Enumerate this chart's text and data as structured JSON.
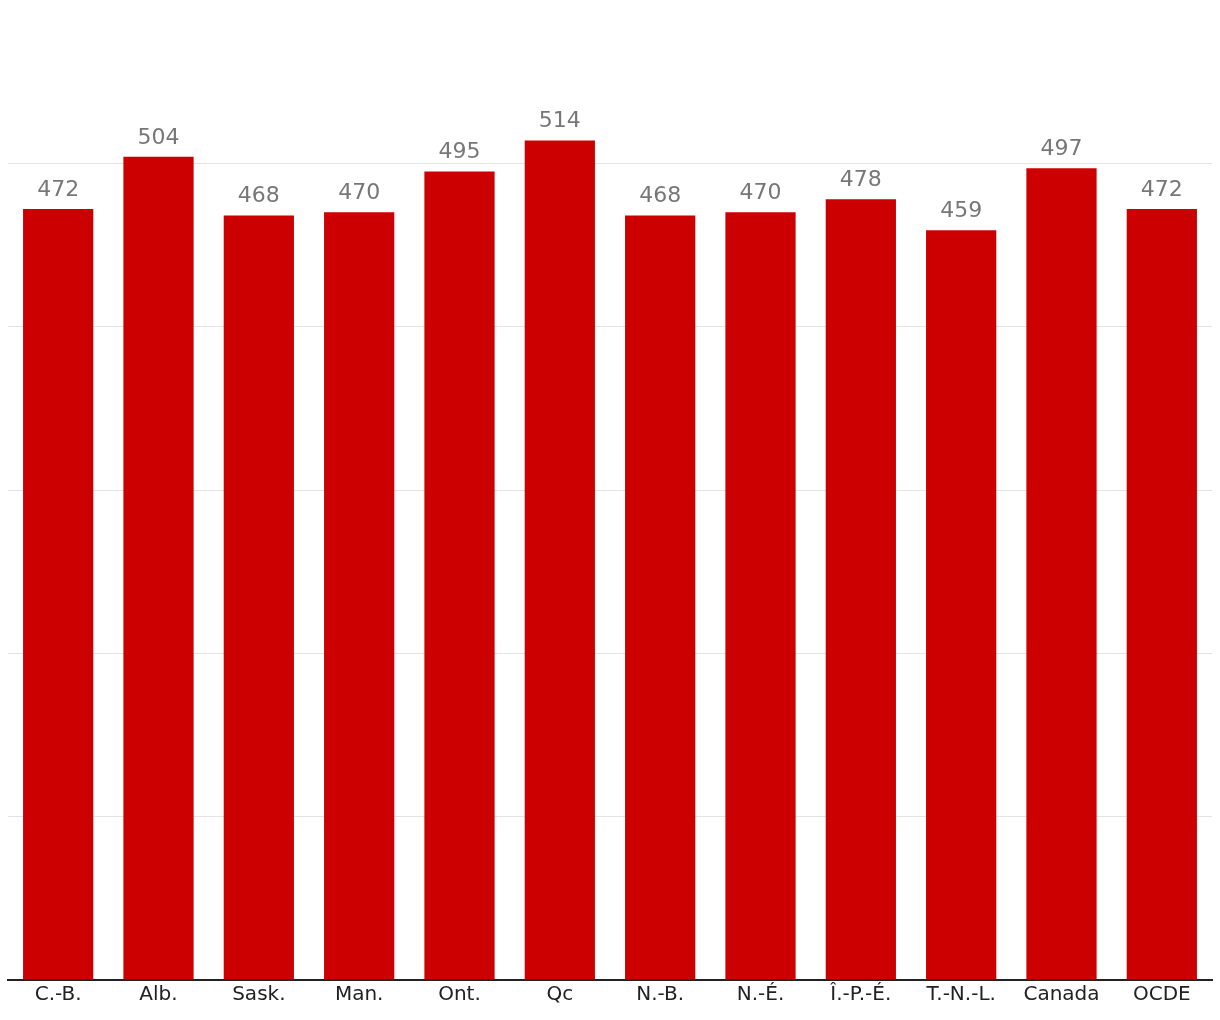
{
  "chart_data": {
    "type": "bar",
    "categories": [
      "C.-B.",
      "Alb.",
      "Sask.",
      "Man.",
      "Ont.",
      "Qc",
      "N.-B.",
      "N.-É.",
      "Î.-P.-É.",
      "T.-N.-L.",
      "Canada",
      "OCDE"
    ],
    "values": [
      472,
      504,
      468,
      470,
      495,
      514,
      468,
      470,
      478,
      459,
      497,
      472
    ],
    "color": "#cc0000",
    "yticks": [
      {
        "value": 0,
        "label": null
      },
      {
        "value": 100,
        "label": null
      },
      {
        "value": 200,
        "label": null
      },
      {
        "value": 300,
        "label": null
      },
      {
        "value": 400,
        "label": null
      },
      {
        "value": 500,
        "label": null
      }
    ],
    "grid": "y",
    "tick_labels": "x",
    "data_labels": true,
    "legend": false
  }
}
